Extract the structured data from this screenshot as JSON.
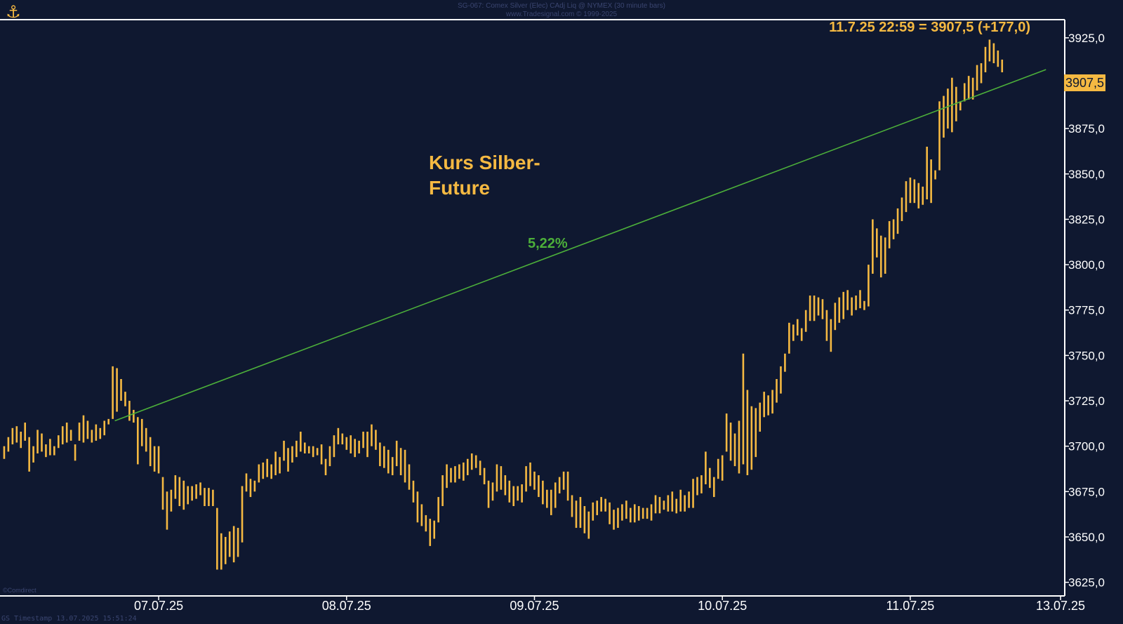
{
  "header": {
    "title": "SG-067: Comex Silver (Elec) CAdj Liq @ NYMEX (30 minute bars)",
    "subtitle": "www.Tradesignal.com © 1999-2025"
  },
  "last_price_label": "11.7.25 22:59 = 3907,5 (+177,0)",
  "price_tag": "3907,5",
  "footer": "GS Timestamp 13.07.2025 15:51:24",
  "corner_watermark": "©Comdirect",
  "colors": {
    "background": "#0f1830",
    "bars": "#f5b942",
    "trendline": "#4caf3a",
    "axis": "#ffffff"
  },
  "chart_data": {
    "type": "bar",
    "subtype": "ohlc",
    "title": "Kurs Silber-\nFuture",
    "y_ticks": [
      "3625,0",
      "3650,0",
      "3675,0",
      "3700,0",
      "3725,0",
      "3750,0",
      "3775,0",
      "3800,0",
      "3825,0",
      "3850,0",
      "3875,0",
      "3900,0",
      "3925,0"
    ],
    "y_tick_values": [
      3625,
      3650,
      3675,
      3700,
      3725,
      3750,
      3775,
      3800,
      3825,
      3850,
      3875,
      3900,
      3925
    ],
    "ylim": [
      3617.5,
      3935
    ],
    "x_ticks": [
      "07.07.25",
      "08.07.25",
      "09.07.25",
      "10.07.25",
      "11.07.25",
      "13.07.25"
    ],
    "x_tick_index": [
      37,
      82,
      127,
      172,
      217,
      253
    ],
    "x_domain": [
      -1,
      254
    ],
    "grid": false,
    "trendline": {
      "label": "5,22%",
      "start": {
        "index": 26.5,
        "value": 3714
      },
      "end": {
        "index": 249.5,
        "value": 3907.5
      }
    },
    "last_close": 3907.5,
    "change": 177.0,
    "bars": [
      [
        3700,
        3693
      ],
      [
        3705,
        3697
      ],
      [
        3710,
        3701
      ],
      [
        3711,
        3702
      ],
      [
        3708,
        3699
      ],
      [
        3713,
        3703
      ],
      [
        3705,
        3686
      ],
      [
        3700,
        3691
      ],
      [
        3709,
        3696
      ],
      [
        3707,
        3697
      ],
      [
        3701,
        3694
      ],
      [
        3704,
        3695
      ],
      [
        3700,
        3695
      ],
      [
        3706,
        3699
      ],
      [
        3711,
        3701
      ],
      [
        3713,
        3702
      ],
      [
        3709,
        3703
      ],
      [
        3701,
        3692
      ],
      [
        3713,
        3703
      ],
      [
        3717,
        3702
      ],
      [
        3714,
        3704
      ],
      [
        3709,
        3702
      ],
      [
        3712,
        3703
      ],
      [
        3710,
        3704
      ],
      [
        3714,
        3706
      ],
      [
        3715,
        3712
      ],
      [
        3744,
        3715
      ],
      [
        3743,
        3719
      ],
      [
        3737,
        3725
      ],
      [
        3730,
        3722
      ],
      [
        3725,
        3714
      ],
      [
        3720,
        3713
      ],
      [
        3716,
        3690
      ],
      [
        3715,
        3700
      ],
      [
        3710,
        3697
      ],
      [
        3705,
        3689
      ],
      [
        3700,
        3686
      ],
      [
        3700,
        3685
      ],
      [
        3683,
        3665
      ],
      [
        3675,
        3654
      ],
      [
        3676,
        3664
      ],
      [
        3684,
        3671
      ],
      [
        3683,
        3667
      ],
      [
        3681,
        3665
      ],
      [
        3678,
        3668
      ],
      [
        3678,
        3670
      ],
      [
        3679,
        3671
      ],
      [
        3680,
        3673
      ],
      [
        3677,
        3667
      ],
      [
        3677,
        3667
      ],
      [
        3676,
        3667
      ],
      [
        3666,
        3632
      ],
      [
        3652,
        3632
      ],
      [
        3650,
        3635
      ],
      [
        3653,
        3639
      ],
      [
        3656,
        3636
      ],
      [
        3655,
        3639
      ],
      [
        3678,
        3647
      ],
      [
        3685,
        3675
      ],
      [
        3682,
        3672
      ],
      [
        3681,
        3675
      ],
      [
        3690,
        3680
      ],
      [
        3691,
        3682
      ],
      [
        3693,
        3683
      ],
      [
        3690,
        3682
      ],
      [
        3697,
        3684
      ],
      [
        3694,
        3685
      ],
      [
        3703,
        3692
      ],
      [
        3699,
        3686
      ],
      [
        3700,
        3691
      ],
      [
        3703,
        3694
      ],
      [
        3708,
        3697
      ],
      [
        3702,
        3696
      ],
      [
        3700,
        3696
      ],
      [
        3700,
        3694
      ],
      [
        3699,
        3695
      ],
      [
        3701,
        3690
      ],
      [
        3693,
        3684
      ],
      [
        3700,
        3689
      ],
      [
        3706,
        3694
      ],
      [
        3710,
        3701
      ],
      [
        3707,
        3701
      ],
      [
        3705,
        3698
      ],
      [
        3706,
        3696
      ],
      [
        3704,
        3694
      ],
      [
        3703,
        3696
      ],
      [
        3708,
        3699
      ],
      [
        3708,
        3694
      ],
      [
        3712,
        3700
      ],
      [
        3709,
        3698
      ],
      [
        3702,
        3689
      ],
      [
        3700,
        3688
      ],
      [
        3698,
        3685
      ],
      [
        3694,
        3684
      ],
      [
        3703,
        3689
      ],
      [
        3699,
        3684
      ],
      [
        3698,
        3680
      ],
      [
        3690,
        3676
      ],
      [
        3681,
        3669
      ],
      [
        3675,
        3658
      ],
      [
        3668,
        3656
      ],
      [
        3662,
        3653
      ],
      [
        3660,
        3645
      ],
      [
        3659,
        3649
      ],
      [
        3672,
        3658
      ],
      [
        3684,
        3667
      ],
      [
        3690,
        3677
      ],
      [
        3688,
        3680
      ],
      [
        3689,
        3680
      ],
      [
        3690,
        3682
      ],
      [
        3691,
        3681
      ],
      [
        3693,
        3684
      ],
      [
        3696,
        3687
      ],
      [
        3695,
        3688
      ],
      [
        3692,
        3684
      ],
      [
        3688,
        3679
      ],
      [
        3681,
        3666
      ],
      [
        3680,
        3670
      ],
      [
        3690,
        3675
      ],
      [
        3689,
        3676
      ],
      [
        3684,
        3673
      ],
      [
        3681,
        3669
      ],
      [
        3678,
        3667
      ],
      [
        3678,
        3670
      ],
      [
        3679,
        3669
      ],
      [
        3689,
        3675
      ],
      [
        3691,
        3678
      ],
      [
        3686,
        3676
      ],
      [
        3684,
        3672
      ],
      [
        3681,
        3668
      ],
      [
        3676,
        3666
      ],
      [
        3676,
        3662
      ],
      [
        3680,
        3666
      ],
      [
        3683,
        3674
      ],
      [
        3686,
        3676
      ],
      [
        3686,
        3670
      ],
      [
        3673,
        3661
      ],
      [
        3670,
        3655
      ],
      [
        3672,
        3655
      ],
      [
        3667,
        3652
      ],
      [
        3664,
        3649
      ],
      [
        3669,
        3659
      ],
      [
        3670,
        3662
      ],
      [
        3672,
        3664
      ],
      [
        3671,
        3664
      ],
      [
        3669,
        3657
      ],
      [
        3665,
        3654
      ],
      [
        3666,
        3655
      ],
      [
        3668,
        3659
      ],
      [
        3670,
        3660
      ],
      [
        3666,
        3658
      ],
      [
        3668,
        3658
      ],
      [
        3667,
        3659
      ],
      [
        3666,
        3660
      ],
      [
        3666,
        3660
      ],
      [
        3668,
        3659
      ],
      [
        3673,
        3663
      ],
      [
        3672,
        3663
      ],
      [
        3670,
        3665
      ],
      [
        3673,
        3664
      ],
      [
        3675,
        3664
      ],
      [
        3671,
        3663
      ],
      [
        3676,
        3664
      ],
      [
        3673,
        3664
      ],
      [
        3675,
        3666
      ],
      [
        3682,
        3666
      ],
      [
        3683,
        3673
      ],
      [
        3684,
        3674
      ],
      [
        3697,
        3679
      ],
      [
        3688,
        3677
      ],
      [
        3683,
        3672
      ],
      [
        3693,
        3682
      ],
      [
        3695,
        3681
      ],
      [
        3718,
        3697
      ],
      [
        3713,
        3692
      ],
      [
        3707,
        3689
      ],
      [
        3714,
        3685
      ],
      [
        3751,
        3690
      ],
      [
        3731,
        3684
      ],
      [
        3722,
        3687
      ],
      [
        3721,
        3694
      ],
      [
        3724,
        3708
      ],
      [
        3730,
        3716
      ],
      [
        3728,
        3717
      ],
      [
        3731,
        3718
      ],
      [
        3737,
        3724
      ],
      [
        3744,
        3729
      ],
      [
        3751,
        3741
      ],
      [
        3768,
        3751
      ],
      [
        3767,
        3758
      ],
      [
        3770,
        3761
      ],
      [
        3765,
        3758
      ],
      [
        3775,
        3763
      ],
      [
        3783,
        3769
      ],
      [
        3783,
        3769
      ],
      [
        3782,
        3772
      ],
      [
        3781,
        3770
      ],
      [
        3775,
        3758
      ],
      [
        3770,
        3752
      ],
      [
        3779,
        3764
      ],
      [
        3782,
        3768
      ],
      [
        3785,
        3770
      ],
      [
        3786,
        3775
      ],
      [
        3782,
        3772
      ],
      [
        3783,
        3775
      ],
      [
        3786,
        3776
      ],
      [
        3780,
        3775
      ],
      [
        3800,
        3777
      ],
      [
        3825,
        3795
      ],
      [
        3820,
        3804
      ],
      [
        3816,
        3793
      ],
      [
        3815,
        3795
      ],
      [
        3824,
        3809
      ],
      [
        3825,
        3814
      ],
      [
        3831,
        3817
      ],
      [
        3837,
        3824
      ],
      [
        3846,
        3829
      ],
      [
        3848,
        3834
      ],
      [
        3847,
        3834
      ],
      [
        3845,
        3831
      ],
      [
        3843,
        3833
      ],
      [
        3865,
        3836
      ],
      [
        3858,
        3834
      ],
      [
        3852,
        3847
      ],
      [
        3890,
        3852
      ],
      [
        3893,
        3870
      ],
      [
        3897,
        3875
      ],
      [
        3903,
        3873
      ],
      [
        3898,
        3879
      ],
      [
        3890,
        3885
      ],
      [
        3900,
        3890
      ],
      [
        3904,
        3891
      ],
      [
        3903,
        3891
      ],
      [
        3910,
        3896
      ],
      [
        3911,
        3900
      ],
      [
        3920,
        3906
      ],
      [
        3924,
        3912
      ],
      [
        3922,
        3911
      ],
      [
        3918,
        3909
      ],
      [
        3913,
        3906
      ]
    ]
  }
}
